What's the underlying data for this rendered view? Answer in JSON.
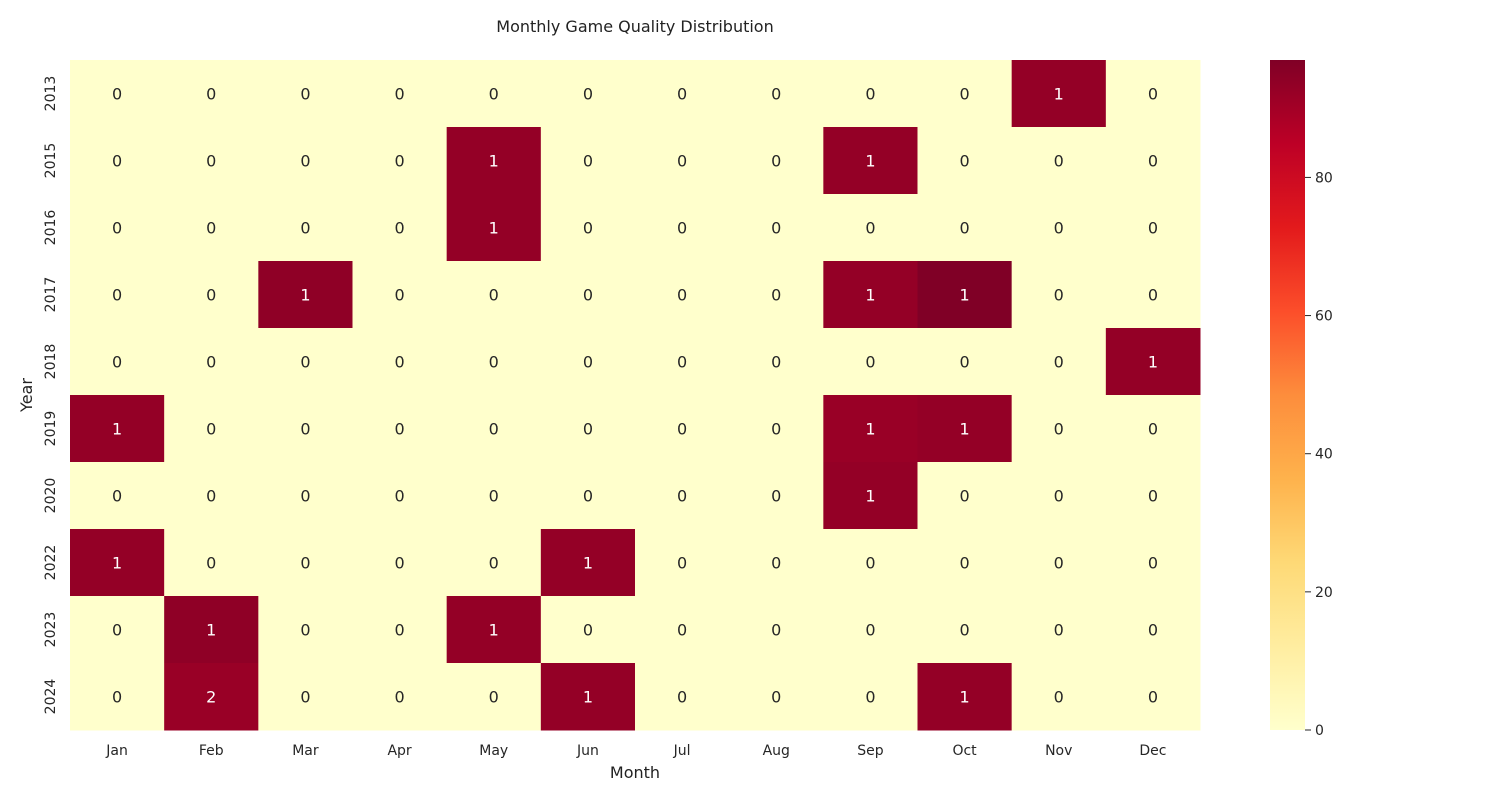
{
  "chart_data": {
    "type": "heatmap",
    "title": "Monthly Game Quality Distribution",
    "xlabel": "Month",
    "ylabel": "Year",
    "months": [
      "Jan",
      "Feb",
      "Mar",
      "Apr",
      "May",
      "Jun",
      "Jul",
      "Aug",
      "Sep",
      "Oct",
      "Nov",
      "Dec"
    ],
    "years": [
      "2013",
      "2015",
      "2016",
      "2017",
      "2018",
      "2019",
      "2020",
      "2022",
      "2023",
      "2024"
    ],
    "annotations": [
      [
        0,
        0,
        0,
        0,
        0,
        0,
        0,
        0,
        0,
        0,
        1,
        0
      ],
      [
        0,
        0,
        0,
        0,
        1,
        0,
        0,
        0,
        1,
        0,
        0,
        0
      ],
      [
        0,
        0,
        0,
        0,
        1,
        0,
        0,
        0,
        0,
        0,
        0,
        0
      ],
      [
        0,
        0,
        1,
        0,
        0,
        0,
        0,
        0,
        1,
        1,
        0,
        0
      ],
      [
        0,
        0,
        0,
        0,
        0,
        0,
        0,
        0,
        0,
        0,
        0,
        1
      ],
      [
        1,
        0,
        0,
        0,
        0,
        0,
        0,
        0,
        1,
        1,
        0,
        0
      ],
      [
        0,
        0,
        0,
        0,
        0,
        0,
        0,
        0,
        1,
        0,
        0,
        0
      ],
      [
        1,
        0,
        0,
        0,
        0,
        1,
        0,
        0,
        0,
        0,
        0,
        0
      ],
      [
        0,
        1,
        0,
        0,
        1,
        0,
        0,
        0,
        0,
        0,
        0,
        0
      ],
      [
        0,
        2,
        0,
        0,
        0,
        1,
        0,
        0,
        0,
        1,
        0,
        0
      ]
    ],
    "color_values": [
      [
        0,
        0,
        0,
        0,
        0,
        0,
        0,
        0,
        0,
        0,
        93,
        0
      ],
      [
        0,
        0,
        0,
        0,
        93,
        0,
        0,
        0,
        93,
        0,
        0,
        0
      ],
      [
        0,
        0,
        0,
        0,
        93,
        0,
        0,
        0,
        0,
        0,
        0,
        0
      ],
      [
        0,
        0,
        94,
        0,
        0,
        0,
        0,
        0,
        93,
        97,
        0,
        0
      ],
      [
        0,
        0,
        0,
        0,
        0,
        0,
        0,
        0,
        0,
        0,
        0,
        93
      ],
      [
        93,
        0,
        0,
        0,
        0,
        0,
        0,
        0,
        92,
        93,
        0,
        0
      ],
      [
        0,
        0,
        0,
        0,
        0,
        0,
        0,
        0,
        93,
        0,
        0,
        0
      ],
      [
        93,
        0,
        0,
        0,
        0,
        93,
        0,
        0,
        0,
        0,
        0,
        0
      ],
      [
        0,
        94,
        0,
        0,
        93,
        0,
        0,
        0,
        0,
        0,
        0,
        0
      ],
      [
        0,
        92,
        0,
        0,
        0,
        93,
        0,
        0,
        0,
        93,
        0,
        0
      ]
    ],
    "colorbar": {
      "range": [
        0,
        97
      ],
      "ticks": [
        0,
        20,
        40,
        60,
        80
      ],
      "colormap": "YlOrRd"
    },
    "grid": false
  }
}
